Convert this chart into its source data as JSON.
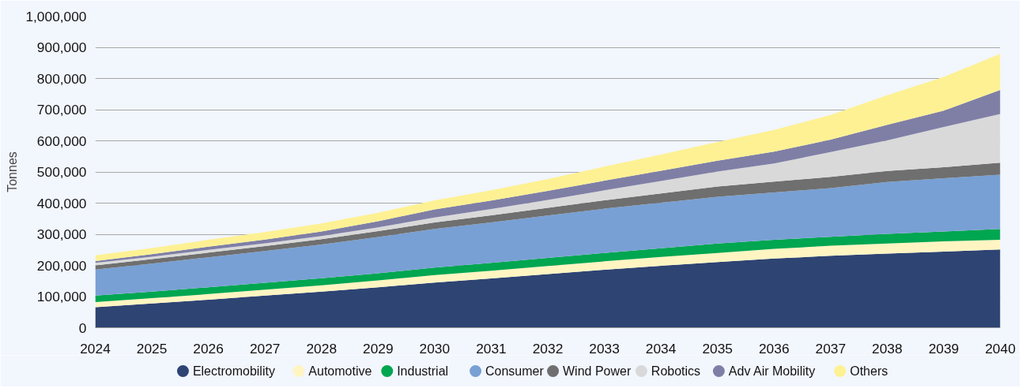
{
  "chart_data": {
    "type": "area",
    "stacked": true,
    "ylabel": "Tonnes",
    "x": [
      2024,
      2025,
      2026,
      2027,
      2028,
      2029,
      2030,
      2031,
      2032,
      2033,
      2034,
      2035,
      2036,
      2037,
      2038,
      2039,
      2040
    ],
    "xlim": [
      2024,
      2040
    ],
    "xticks": [
      2024,
      2025,
      2026,
      2027,
      2028,
      2029,
      2030,
      2031,
      2032,
      2033,
      2034,
      2035,
      2036,
      2037,
      2038,
      2039,
      2040
    ],
    "ylim": [
      0,
      1000000
    ],
    "yticks": [
      0,
      {
        "value": 100000,
        "label": "100,000"
      },
      {
        "value": 200000,
        "label": "200,000"
      },
      {
        "value": 300000,
        "label": "300,000"
      },
      {
        "value": 400000,
        "label": "400,000"
      },
      {
        "value": 500000,
        "label": "500,000"
      },
      {
        "value": 600000,
        "label": "600,000"
      },
      {
        "value": 700000,
        "label": "700,000"
      },
      {
        "value": 800000,
        "label": "800,000"
      },
      {
        "value": 900000,
        "label": "900,000"
      },
      {
        "value": 1000000,
        "label": "1,000,000"
      }
    ],
    "grid": "y",
    "legend": "bottom",
    "series": [
      {
        "name": "Electromobility",
        "color": "#2e4473",
        "values": [
          66000,
          78000,
          90000,
          103000,
          116000,
          130000,
          145000,
          158000,
          172000,
          186000,
          199000,
          211000,
          222000,
          231000,
          238000,
          244000,
          251000
        ]
      },
      {
        "name": "Automotive",
        "color": "#fff5c2",
        "values": [
          16000,
          17000,
          18000,
          19000,
          20000,
          22000,
          24000,
          25000,
          26000,
          27000,
          28000,
          29000,
          31000,
          32000,
          32000,
          33000,
          31000
        ]
      },
      {
        "name": "Industrial",
        "color": "#00a650",
        "values": [
          21000,
          21000,
          22000,
          22000,
          23000,
          23000,
          24000,
          25000,
          26000,
          27000,
          28000,
          30000,
          29000,
          29000,
          31000,
          32000,
          35000
        ]
      },
      {
        "name": "Consumer",
        "color": "#78a0d4",
        "values": [
          84000,
          90000,
          96000,
          102000,
          108000,
          116000,
          124000,
          130000,
          136000,
          142000,
          146000,
          150000,
          152000,
          156000,
          167000,
          171000,
          174000
        ]
      },
      {
        "name": "Wind Power",
        "color": "#6f6f6f",
        "values": [
          13000,
          14000,
          15000,
          16000,
          17000,
          19000,
          21000,
          23000,
          25000,
          27000,
          30000,
          33000,
          35000,
          36000,
          35000,
          35000,
          39000
        ]
      },
      {
        "name": "Robotics",
        "color": "#d9d9d9",
        "values": [
          8000,
          8000,
          9000,
          9000,
          10000,
          12000,
          16000,
          20000,
          25000,
          32000,
          40000,
          48000,
          58000,
          80000,
          98000,
          129000,
          156000
        ]
      },
      {
        "name": "Adv Air Mobility",
        "color": "#7f7fa6",
        "values": [
          6000,
          8000,
          10000,
          12000,
          15000,
          20000,
          26000,
          27000,
          29000,
          31000,
          33000,
          35000,
          38000,
          40000,
          50000,
          53000,
          77000
        ]
      },
      {
        "name": "Others",
        "color": "#fdf193",
        "values": [
          18000,
          20000,
          22000,
          24000,
          26000,
          27000,
          29000,
          33000,
          38000,
          45000,
          52000,
          60000,
          70000,
          79000,
          95000,
          108000,
          116000
        ]
      }
    ]
  }
}
